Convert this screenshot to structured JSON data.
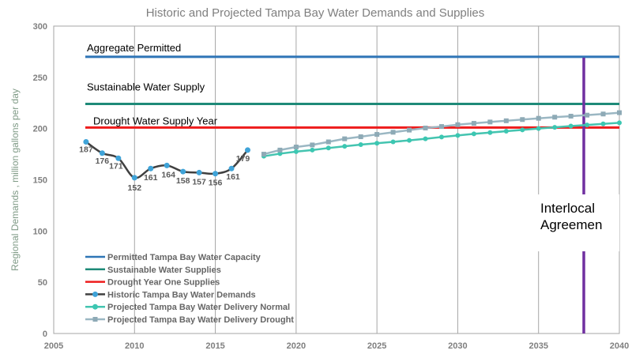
{
  "chart_data": {
    "type": "line",
    "title": "Historic and Projected Tampa Bay Water Demands and Supplies",
    "xlabel": "",
    "ylabel": "Regional Demands , million gallons per day",
    "xlim": [
      2005,
      2040
    ],
    "ylim": [
      0,
      300
    ],
    "x_ticks": [
      2005,
      2010,
      2015,
      2020,
      2025,
      2030,
      2035,
      2040
    ],
    "y_ticks": [
      0,
      50,
      100,
      150,
      200,
      250,
      300
    ],
    "grid": {
      "vertical": true,
      "horizontal": false
    },
    "legend_position": "bottom-left",
    "reference_lines": [
      {
        "name": "Permitted Tampa Bay Water Capacity",
        "value": 270,
        "label": "Aggregate Permitted",
        "color": "#2e75b6"
      },
      {
        "name": "Sustainable Water Supplies",
        "value": 224,
        "label": "Sustainable Water Supply",
        "color": "#1e8a78"
      },
      {
        "name": "Drought Year One Supplies",
        "value": 201,
        "label": "Drought  Water Supply Year",
        "color": "#ee1c1c"
      }
    ],
    "series": [
      {
        "name": "Historic Tampa Bay Water Demands",
        "color": "#404040",
        "marker_color": "#3fa3d8",
        "x": [
          2007,
          2008,
          2009,
          2010,
          2011,
          2012,
          2013,
          2014,
          2015,
          2016,
          2017
        ],
        "values": [
          187,
          176,
          171,
          152,
          161,
          164,
          158,
          157,
          156,
          161,
          179
        ],
        "labels": [
          "187",
          "176",
          "171",
          "152",
          "161",
          "164",
          "158",
          "157",
          "156",
          "161",
          "179"
        ]
      },
      {
        "name": "Projected Tampa Bay Water Delivery Normal",
        "color": "#44c4b0",
        "marker_color": "#3cc7b2",
        "x": [
          2018,
          2019,
          2020,
          2021,
          2022,
          2023,
          2024,
          2025,
          2026,
          2027,
          2028,
          2029,
          2030,
          2031,
          2032,
          2033,
          2034,
          2035,
          2036,
          2037,
          2038,
          2039,
          2040
        ],
        "values": [
          173,
          175.5,
          177.5,
          179,
          181,
          182.7,
          184.3,
          185.7,
          187,
          188.5,
          190,
          191.7,
          193.3,
          194.8,
          196.1,
          197.4,
          198.7,
          200,
          201.2,
          202.4,
          203.5,
          204.6,
          205.6
        ]
      },
      {
        "name": "Projected Tampa Bay Water Delivery Drought",
        "color": "#9bb7c3",
        "marker_color": "#8eaab6",
        "x": [
          2018,
          2019,
          2020,
          2021,
          2022,
          2023,
          2024,
          2025,
          2026,
          2027,
          2028,
          2029,
          2030,
          2031,
          2032,
          2033,
          2034,
          2035,
          2036,
          2037,
          2038,
          2039,
          2040
        ],
        "values": [
          175,
          179,
          182,
          184,
          187,
          190,
          192,
          194.3,
          196.4,
          198.5,
          200.5,
          202,
          203.8,
          205.1,
          206.4,
          207.6,
          208.8,
          210,
          211.1,
          212.1,
          213.1,
          214.2,
          215.5
        ]
      }
    ],
    "annotation": {
      "text_line1": "Interlocal",
      "text_line2": "Agreemen",
      "x": 2037.8,
      "color": "#7030a0"
    }
  }
}
